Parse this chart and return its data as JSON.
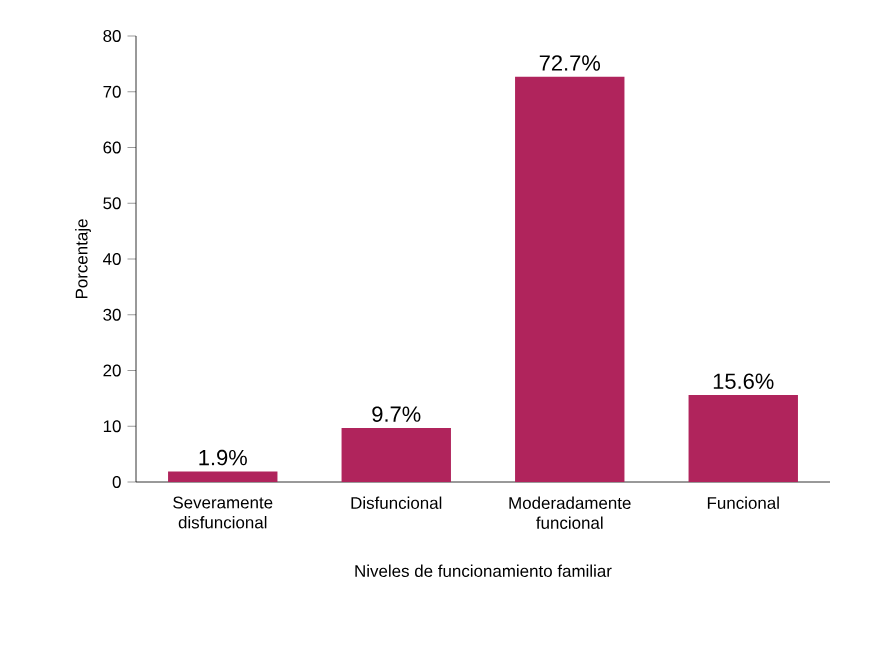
{
  "chart_data": {
    "type": "bar",
    "xlabel": "Niveles de funcionamiento familiar",
    "ylabel": "Porcentaje",
    "categories": [
      "Severamente disfuncional",
      "Disfuncional",
      "Moderadamente funcional",
      "Funcional"
    ],
    "values": [
      1.9,
      9.7,
      72.7,
      15.6
    ],
    "value_labels": [
      "1.9%",
      "9.7%",
      "72.7%",
      "15.6%"
    ],
    "color": "#b0245c",
    "ylim": [
      0,
      80
    ],
    "yticks": [
      0,
      10,
      20,
      30,
      40,
      50,
      60,
      70,
      80
    ],
    "grid": false
  }
}
